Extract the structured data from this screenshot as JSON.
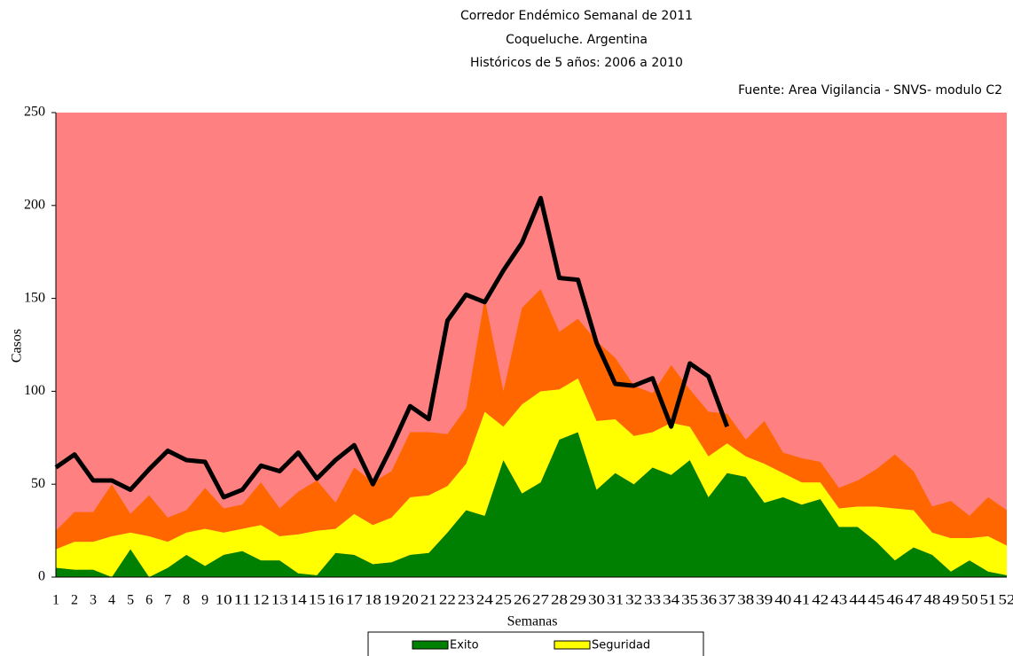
{
  "chart_data": {
    "type": "stacked-area",
    "title": [
      "Corredor Endémico Semanal de 2011",
      "Coqueluche.  Argentina",
      "Históricos de 5 años: 2006  a 2010"
    ],
    "source": "Fuente: Area Vigilancia - SNVS- modulo C2",
    "xlabel": "Semanas",
    "ylabel": "Casos",
    "categories": [
      "1",
      "2",
      "3",
      "4",
      "5",
      "6",
      "7",
      "8",
      "9",
      "10",
      "11",
      "12",
      "13",
      "14",
      "15",
      "16",
      "17",
      "18",
      "19",
      "20",
      "21",
      "22",
      "23",
      "24",
      "25",
      "26",
      "27",
      "28",
      "29",
      "30",
      "31",
      "32",
      "33",
      "34",
      "35",
      "36",
      "37",
      "38",
      "39",
      "40",
      "41",
      "42",
      "43",
      "44",
      "45",
      "46",
      "47",
      "48",
      "49",
      "50",
      "51",
      "52"
    ],
    "ylim": [
      0,
      250
    ],
    "yticks": [
      0,
      50,
      100,
      150,
      200,
      250
    ],
    "plot_background": "#ff8080",
    "series": [
      {
        "name": "Exito",
        "color": "#008000",
        "values": [
          5,
          4,
          4,
          0,
          15,
          0,
          5,
          12,
          6,
          12,
          14,
          9,
          9,
          2,
          1,
          13,
          12,
          7,
          8,
          12,
          13,
          24,
          36,
          33,
          63,
          45,
          51,
          74,
          78,
          47,
          56,
          50,
          59,
          55,
          63,
          43,
          56,
          54,
          40,
          43,
          39,
          42,
          27,
          27,
          19,
          9,
          16,
          12,
          3,
          9,
          3,
          1
        ]
      },
      {
        "name": "Seguridad",
        "color": "#ffff00",
        "values": [
          10,
          15,
          15,
          22,
          9,
          22,
          14,
          12,
          20,
          12,
          12,
          19,
          13,
          21,
          24,
          13,
          22,
          21,
          24,
          31,
          31,
          25,
          25,
          56,
          18,
          48,
          49,
          27,
          29,
          37,
          29,
          26,
          19,
          28,
          18,
          22,
          16,
          11,
          21,
          13,
          12,
          9,
          10,
          11,
          19,
          28,
          20,
          12,
          18,
          12,
          19,
          16
        ]
      },
      {
        "color": "#ff6600",
        "values": [
          10,
          16,
          16,
          28,
          10,
          22,
          13,
          12,
          22,
          13,
          13,
          23,
          15,
          23,
          27,
          14,
          25,
          23,
          25,
          35,
          34,
          28,
          30,
          61,
          19,
          52,
          55,
          31,
          32,
          43,
          33,
          27,
          21,
          31,
          20,
          24,
          16,
          9,
          23,
          11,
          13,
          11,
          11,
          14,
          20,
          29,
          21,
          14,
          20,
          12,
          21,
          19
        ]
      }
    ],
    "line": {
      "color": "#000000",
      "values": [
        59,
        66,
        52,
        52,
        47,
        58,
        68,
        63,
        62,
        43,
        47,
        60,
        57,
        67,
        53,
        63,
        71,
        50,
        70,
        92,
        85,
        138,
        152,
        148,
        165,
        180,
        204,
        161,
        160,
        126,
        104,
        103,
        107,
        81,
        115,
        108,
        81,
        null,
        null,
        null,
        null,
        null,
        null,
        null,
        null,
        null,
        null,
        null,
        null,
        null,
        null,
        null
      ]
    }
  }
}
